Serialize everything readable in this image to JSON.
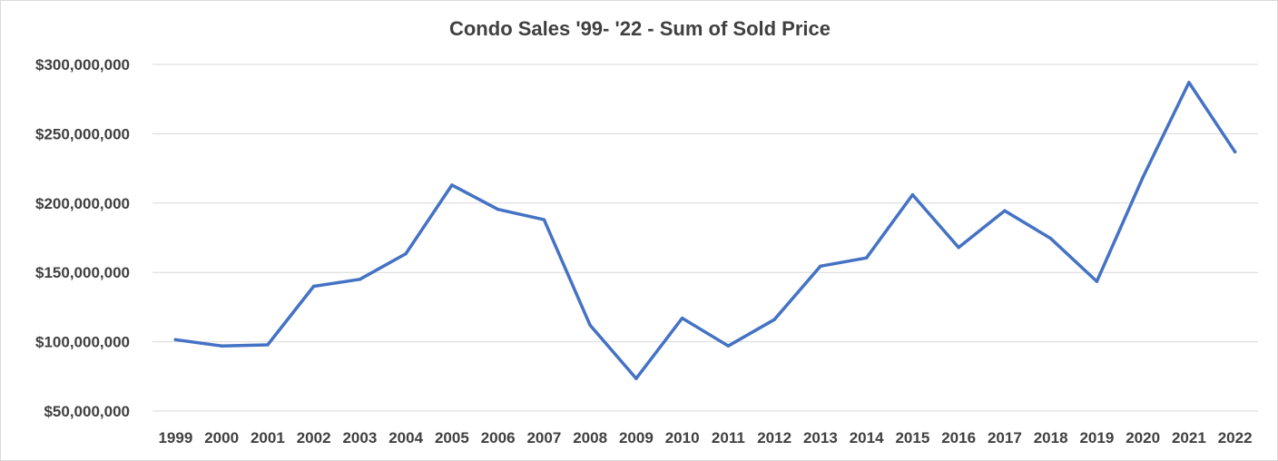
{
  "chart_data": {
    "type": "line",
    "title": "Condo Sales '99- '22 - Sum of Sold Price",
    "xlabel": "",
    "ylabel": "",
    "categories": [
      "1999",
      "2000",
      "2001",
      "2002",
      "2003",
      "2004",
      "2005",
      "2006",
      "2007",
      "2008",
      "2009",
      "2010",
      "2011",
      "2012",
      "2013",
      "2014",
      "2015",
      "2016",
      "2017",
      "2018",
      "2019",
      "2020",
      "2021",
      "2022"
    ],
    "series": [
      {
        "name": "Sum of Sold Price",
        "color": "#4472c4",
        "values": [
          101500000,
          97000000,
          97800000,
          140000000,
          145000000,
          163500000,
          213000000,
          195500000,
          188000000,
          112000000,
          73500000,
          117000000,
          97000000,
          116000000,
          154500000,
          160500000,
          206000000,
          168000000,
          194500000,
          174500000,
          143500000,
          218500000,
          287000000,
          237000000
        ]
      }
    ],
    "ylim": [
      50000000,
      300000000
    ],
    "yticks": [
      300000000,
      250000000,
      200000000,
      150000000,
      100000000,
      50000000
    ],
    "ytick_labels": [
      "$300,000,000",
      "$250,000,000",
      "$200,000,000",
      "$150,000,000",
      "$100,000,000",
      "$50,000,000"
    ],
    "grid": true,
    "legend": "none"
  }
}
